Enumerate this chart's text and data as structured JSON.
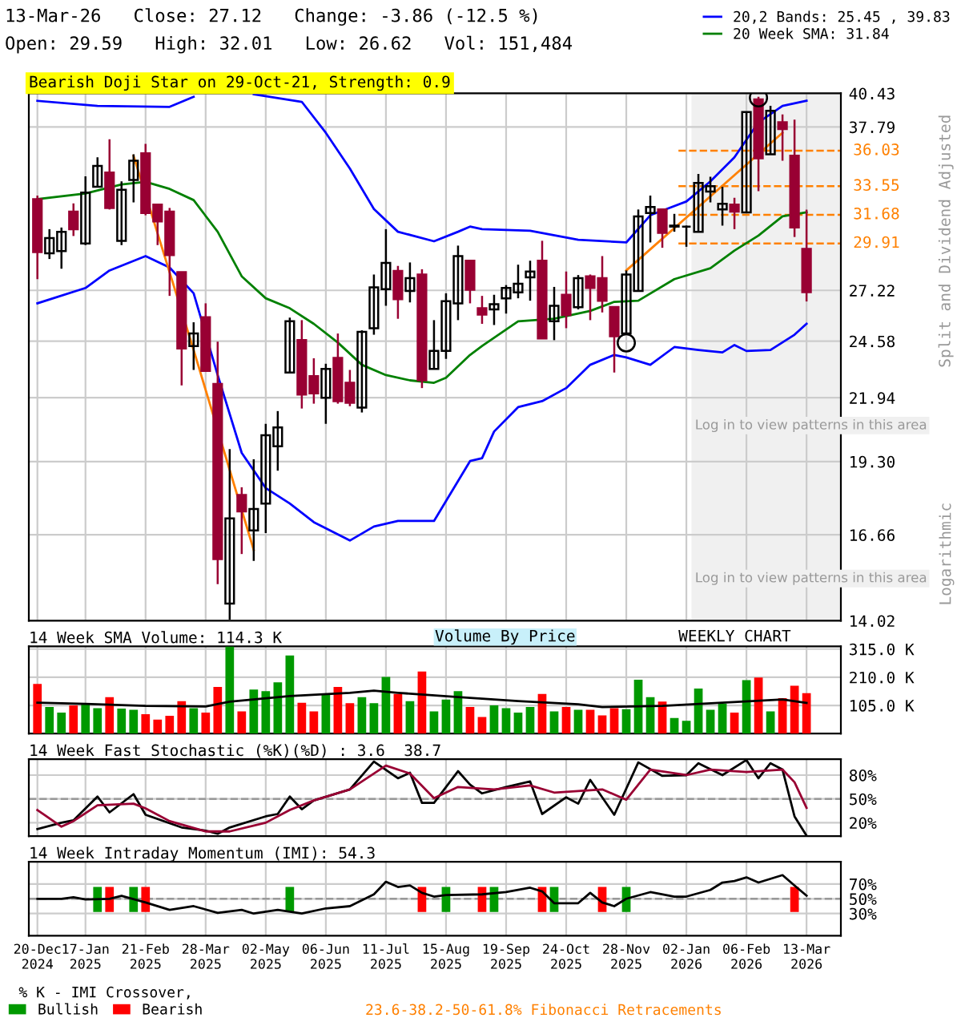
{
  "chart_data": [
    {
      "type": "candlestick",
      "title": "13-Mar-26   Close: 27.12   Change: -3.86 (-12.5 %)",
      "subtitle": "Open: 29.59   High: 32.01   Low: 26.62   Vol: 151,484",
      "ylabel": "Split and Dividend Adjusted",
      "colors": [
        "#990033",
        "#000000",
        "#000000",
        "#990033",
        "#000000",
        "#000000",
        "#990033",
        "#000000",
        "#000000",
        "#990033",
        "#990033",
        "#990033",
        "#990033",
        "#000000",
        "#990033",
        "#990033",
        "#000000",
        "#990033",
        "#000000",
        "#000000",
        "#000000",
        "#000000",
        "#990033",
        "#990033",
        "#000000",
        "#990033",
        "#990033",
        "#000000",
        "#000000",
        "#000000",
        "#990033",
        "#000000",
        "#990033",
        "#000000",
        "#000000",
        "#000000",
        "#990033",
        "#990033",
        "#000000",
        "#000000",
        "#000000",
        "#000000",
        "#990033",
        "#000000",
        "#990033",
        "#000000",
        "#990033",
        "#990033",
        "#990033",
        "#000000",
        "#000000",
        "#000000",
        "#990033",
        "#000000",
        "#000000",
        "#000000",
        "#000000",
        "#000000",
        "#990033",
        "#000000",
        "#990033",
        "#000000",
        "#990033",
        "#990033",
        "#990033"
      ],
      "x": [
        "2024-12-20",
        "2024-12-27",
        "2025-01-03",
        "2025-01-10",
        "2025-01-17",
        "2025-01-24",
        "2025-01-31",
        "2025-02-07",
        "2025-02-14",
        "2025-02-21",
        "2025-02-28",
        "2025-03-07",
        "2025-03-14",
        "2025-03-21",
        "2025-03-28",
        "2025-04-04",
        "2025-04-11",
        "2025-04-18",
        "2025-04-25",
        "2025-05-02",
        "2025-05-09",
        "2025-05-16",
        "2025-05-23",
        "2025-05-30",
        "2025-06-06",
        "2025-06-13",
        "2025-06-20",
        "2025-06-27",
        "2025-07-04",
        "2025-07-11",
        "2025-07-18",
        "2025-07-25",
        "2025-08-01",
        "2025-08-08",
        "2025-08-15",
        "2025-08-22",
        "2025-08-29",
        "2025-09-05",
        "2025-09-12",
        "2025-09-19",
        "2025-09-26",
        "2025-10-03",
        "2025-10-10",
        "2025-10-17",
        "2025-10-24",
        "2025-10-31",
        "2025-11-07",
        "2025-11-14",
        "2025-11-21",
        "2025-11-28",
        "2025-12-05",
        "2025-12-12",
        "2025-12-19",
        "2025-12-26",
        "2026-01-02",
        "2026-01-09",
        "2026-01-16",
        "2026-01-23",
        "2026-01-30",
        "2026-02-06",
        "2026-02-13",
        "2026-02-20",
        "2026-02-27",
        "2026-03-06",
        "2026-03-13"
      ],
      "ohlc": [
        [
          32.69,
          32.93,
          27.84,
          29.39
        ],
        [
          29.32,
          30.78,
          28.99,
          30.23
        ],
        [
          29.45,
          30.88,
          28.43,
          30.62
        ],
        [
          31.89,
          32.42,
          30.36,
          30.78
        ],
        [
          29.91,
          34.23,
          29.81,
          33.13
        ],
        [
          33.52,
          35.56,
          33.52,
          34.95
        ],
        [
          34.49,
          36.87,
          32.02,
          32.12
        ],
        [
          30.07,
          33.88,
          29.81,
          33.31
        ],
        [
          33.98,
          35.78,
          32.48,
          35.31
        ],
        [
          35.85,
          36.53,
          31.65,
          31.8
        ],
        [
          32.33,
          32.33,
          29.81,
          31.26
        ],
        [
          31.89,
          32.12,
          26.92,
          29.22
        ],
        [
          28.23,
          28.23,
          22.49,
          24.22
        ],
        [
          24.34,
          25.53,
          23.2,
          24.96
        ],
        [
          25.79,
          26.52,
          23.15,
          23.15
        ],
        [
          22.56,
          24.56,
          15.09,
          15.87
        ],
        [
          14.51,
          19.79,
          14.05,
          17.22
        ],
        [
          18.05,
          18.33,
          16.03,
          17.46
        ],
        [
          16.81,
          19.39,
          15.81,
          17.55
        ],
        [
          17.74,
          20.82,
          16.72,
          20.35
        ],
        [
          19.9,
          21.36,
          18.95,
          20.67
        ],
        [
          23.08,
          25.77,
          23.08,
          25.58
        ],
        [
          24.63,
          25.64,
          21.47,
          22.08
        ],
        [
          22.91,
          23.75,
          21.68,
          22.13
        ],
        [
          21.94,
          23.49,
          20.82,
          23.25
        ],
        [
          23.77,
          24.96,
          21.68,
          21.79
        ],
        [
          22.61,
          23.2,
          21.57,
          21.72
        ],
        [
          21.51,
          25.12,
          21.3,
          25.04
        ],
        [
          25.23,
          28.1,
          24.9,
          27.38
        ],
        [
          27.29,
          30.78,
          26.39,
          28.76
        ],
        [
          28.3,
          28.59,
          25.71,
          26.74
        ],
        [
          27.19,
          28.79,
          26.57,
          27.9
        ],
        [
          28.1,
          28.4,
          22.37,
          22.72
        ],
        [
          23.25,
          25.64,
          23.25,
          24.1
        ],
        [
          24.1,
          27.06,
          23.72,
          26.63
        ],
        [
          26.52,
          29.78,
          25.64,
          29.16
        ],
        [
          28.89,
          28.89,
          26.52,
          27.25
        ],
        [
          26.26,
          26.92,
          25.45,
          25.93
        ],
        [
          26.2,
          26.98,
          25.39,
          26.47
        ],
        [
          26.79,
          27.51,
          25.98,
          27.35
        ],
        [
          27.11,
          28.66,
          26.79,
          27.58
        ],
        [
          27.94,
          28.89,
          26.66,
          28.27
        ],
        [
          28.89,
          30.07,
          24.71,
          24.71
        ],
        [
          25.58,
          27.41,
          24.63,
          26.39
        ],
        [
          26.98,
          28.27,
          25.23,
          25.9
        ],
        [
          26.31,
          28.07,
          26.2,
          27.9
        ],
        [
          28.0,
          28.1,
          25.64,
          27.35
        ],
        [
          27.9,
          29.16,
          26.04,
          26.66
        ],
        [
          26.33,
          26.33,
          23.08,
          24.82
        ],
        [
          24.96,
          28.33,
          24.9,
          28.1
        ],
        [
          27.19,
          32.02,
          27.19,
          31.58
        ],
        [
          31.8,
          32.93,
          29.97,
          32.18
        ],
        [
          32.02,
          32.02,
          29.65,
          30.55
        ],
        [
          30.94,
          31.74,
          30.62,
          31.0
        ],
        [
          30.94,
          31.0,
          29.71,
          30.94
        ],
        [
          30.62,
          34.39,
          30.62,
          33.77
        ],
        [
          33.19,
          34.2,
          32.48,
          33.56
        ],
        [
          32.02,
          33.52,
          31.0,
          32.39
        ],
        [
          32.33,
          32.78,
          30.78,
          31.89
        ],
        [
          31.83,
          38.95,
          31.83,
          38.95
        ],
        [
          39.95,
          40.15,
          33.22,
          35.49
        ],
        [
          35.78,
          39.43,
          35.78,
          39.03
        ],
        [
          38.15,
          38.75,
          35.31,
          37.64
        ],
        [
          35.67,
          38.35,
          30.3,
          30.88
        ],
        [
          29.59,
          32.01,
          26.62,
          27.12
        ]
      ],
      "series": [
        {
          "type": "line",
          "name": "20,2 Bands: 25.45 , 39.83",
          "color": "#0000ff",
          "x": [
            "2024-12-20",
            "2025-01-24",
            "2025-03-07",
            "2025-03-21",
            "2025-04-04",
            "2025-04-25",
            "2025-05-23",
            "2025-06-06",
            "2025-06-20",
            "2025-07-04",
            "2025-07-18",
            "2025-08-08",
            "2025-08-22",
            "2025-08-29",
            "2025-09-05",
            "2025-10-03",
            "2025-10-31",
            "2025-11-28",
            "2025-12-12",
            "2026-01-02",
            "2026-01-16",
            "2026-01-30",
            "2026-02-13",
            "2026-02-27",
            "2026-03-13"
          ],
          "values": [
            39.83,
            39.43,
            39.35,
            40.15,
            null,
            40.35,
            39.75,
            37.35,
            34.77,
            32.05,
            30.62,
            30.04,
            30.62,
            30.94,
            30.78,
            30.68,
            30.13,
            29.97,
            31.65,
            32.54,
            33.88,
            35.56,
            38.15,
            39.43,
            39.83
          ]
        },
        {
          "type": "line",
          "color": "#0000ff",
          "x": [
            "2024-12-20",
            "2025-01-17",
            "2025-01-31",
            "2025-02-21",
            "2025-03-07",
            "2025-03-21",
            "2025-04-04",
            "2025-04-18",
            "2025-05-02",
            "2025-05-16",
            "2025-05-30",
            "2025-06-20",
            "2025-07-04",
            "2025-07-18",
            "2025-08-08",
            "2025-08-29",
            "2025-09-05",
            "2025-09-12",
            "2025-09-26",
            "2025-10-10",
            "2025-10-24",
            "2025-11-07",
            "2025-11-21",
            "2025-11-28",
            "2025-12-12",
            "2025-12-26",
            "2026-01-09",
            "2026-01-23",
            "2026-01-30",
            "2026-02-06",
            "2026-02-20",
            "2026-03-06",
            "2026-03-13"
          ],
          "values": [
            26.52,
            27.35,
            28.33,
            29.16,
            28.5,
            27.06,
            22.96,
            19.64,
            18.3,
            17.74,
            17.09,
            16.47,
            16.94,
            17.13,
            17.13,
            19.32,
            19.43,
            20.5,
            21.53,
            21.79,
            22.37,
            23.44,
            23.91,
            23.79,
            23.44,
            24.29,
            24.15,
            24.03,
            24.39,
            24.1,
            24.15,
            24.9,
            25.45
          ]
        },
        {
          "type": "line",
          "name": "20 Week SMA: 31.84",
          "color": "#008000",
          "x": [
            "2024-12-20",
            "2025-01-17",
            "2025-02-07",
            "2025-02-21",
            "2025-03-07",
            "2025-03-21",
            "2025-04-04",
            "2025-04-18",
            "2025-05-02",
            "2025-05-16",
            "2025-05-30",
            "2025-06-13",
            "2025-06-27",
            "2025-07-11",
            "2025-07-25",
            "2025-08-08",
            "2025-08-15",
            "2025-08-29",
            "2025-09-05",
            "2025-09-26",
            "2025-10-17",
            "2025-11-07",
            "2025-11-21",
            "2025-12-05",
            "2025-12-26",
            "2026-01-16",
            "2026-01-30",
            "2026-02-13",
            "2026-02-27",
            "2026-03-13"
          ],
          "values": [
            32.69,
            33.07,
            33.67,
            33.85,
            33.37,
            32.63,
            30.62,
            28.0,
            26.79,
            26.26,
            25.45,
            24.51,
            23.44,
            22.96,
            22.72,
            22.61,
            22.84,
            23.91,
            24.34,
            25.58,
            25.71,
            26.12,
            26.6,
            26.66,
            27.84,
            28.46,
            29.48,
            30.39,
            31.58,
            31.84
          ]
        },
        {
          "type": "line",
          "color": "#ff8000",
          "x": [
            "2025-02-14",
            "2025-03-21",
            "2025-04-25"
          ],
          "values": [
            35.67,
            24.15,
            16.16
          ]
        },
        {
          "type": "line",
          "color": "#ff8000",
          "x": [
            "2025-11-28",
            "2026-02-27"
          ],
          "values": [
            28.33,
            37.35
          ]
        },
        {
          "type": "scatter",
          "color": "#000000",
          "marker": "circle",
          "x": [
            "2025-11-28",
            "2026-02-13"
          ],
          "values": [
            24.5,
            40.07
          ]
        }
      ],
      "ref_lines": [
        {
          "axis": "y",
          "value": 36.03,
          "label": "36.03",
          "color": "#ff8000",
          "line_style": "dashed"
        },
        {
          "axis": "y",
          "value": 33.55,
          "label": "33.55",
          "color": "#ff8000",
          "line_style": "dashed"
        },
        {
          "axis": "y",
          "value": 31.68,
          "label": "31.68",
          "color": "#ff8000",
          "line_style": "dashed"
        },
        {
          "axis": "y",
          "value": 29.91,
          "label": "29.91",
          "color": "#ff8000",
          "line_style": "dashed"
        }
      ],
      "bands": [
        {
          "axis": "x",
          "from": "2026-01-05",
          "to": "2026-04-02",
          "label": "Log in to view patterns in this area",
          "color": "#f0f0f0"
        }
      ],
      "annotations": [
        "Bearish Doji Star on 29-Oct-21, Strength: 0.9",
        "Log in to view patterns in this area",
        "Logarithmic"
      ],
      "log": "y",
      "ylim": [
        14.02,
        40.43
      ],
      "yticks": [
        14.02,
        16.66,
        {
          "value": 19.3,
          "label": "19.30"
        },
        21.94,
        24.58,
        27.22,
        37.79,
        40.43
      ],
      "xlim": [
        "2024-12-15",
        "2026-04-02"
      ],
      "xticks": [
        {
          "value": "2024-12-20",
          "label": null
        },
        {
          "value": "2025-01-17",
          "label": null
        },
        {
          "value": "2025-02-21",
          "label": null
        },
        {
          "value": "2025-03-28",
          "label": null
        },
        {
          "value": "2025-05-02",
          "label": null
        },
        {
          "value": "2025-06-06",
          "label": null
        },
        {
          "value": "2025-07-11",
          "label": null
        },
        {
          "value": "2025-08-15",
          "label": null
        },
        {
          "value": "2025-09-19",
          "label": null
        },
        {
          "value": "2025-10-24",
          "label": null
        },
        {
          "value": "2025-11-28",
          "label": null
        },
        {
          "value": "2026-01-02",
          "label": null
        },
        {
          "value": "2026-02-06",
          "label": null
        },
        {
          "value": "2026-03-13",
          "label": null
        }
      ],
      "grid": true,
      "legend": "top right",
      "tick_labels": "y"
    },
    {
      "type": "bar",
      "title": "14 Week SMA Volume: 114.3 K",
      "x": [
        "2024-12-20",
        "2024-12-27",
        "2025-01-03",
        "2025-01-10",
        "2025-01-17",
        "2025-01-24",
        "2025-01-31",
        "2025-02-07",
        "2025-02-14",
        "2025-02-21",
        "2025-02-28",
        "2025-03-07",
        "2025-03-14",
        "2025-03-21",
        "2025-03-28",
        "2025-04-04",
        "2025-04-11",
        "2025-04-18",
        "2025-04-25",
        "2025-05-02",
        "2025-05-09",
        "2025-05-16",
        "2025-05-23",
        "2025-05-30",
        "2025-06-06",
        "2025-06-13",
        "2025-06-20",
        "2025-06-27",
        "2025-07-04",
        "2025-07-11",
        "2025-07-18",
        "2025-07-25",
        "2025-08-01",
        "2025-08-08",
        "2025-08-15",
        "2025-08-22",
        "2025-08-29",
        "2025-09-05",
        "2025-09-12",
        "2025-09-19",
        "2025-09-26",
        "2025-10-03",
        "2025-10-10",
        "2025-10-17",
        "2025-10-24",
        "2025-10-31",
        "2025-11-07",
        "2025-11-14",
        "2025-11-21",
        "2025-11-28",
        "2025-12-05",
        "2025-12-12",
        "2025-12-19",
        "2025-12-26",
        "2026-01-02",
        "2026-01-09",
        "2026-01-16",
        "2026-01-23",
        "2026-01-30",
        "2026-02-06",
        "2026-02-13",
        "2026-02-20",
        "2026-02-27",
        "2026-03-06",
        "2026-03-13"
      ],
      "series": [
        {
          "type": "bar",
          "values": [
            185,
            99,
            78,
            105,
            111,
            95,
            136,
            93,
            89,
            72,
            52,
            66,
            121,
            95,
            78,
            174,
            325,
            83,
            164,
            158,
            191,
            291,
            115,
            83,
            148,
            174,
            113,
            136,
            113,
            211,
            148,
            121,
            231,
            83,
            127,
            158,
            99,
            62,
            105,
            95,
            78,
            99,
            148,
            83,
            99,
            89,
            89,
            68,
            95,
            91,
            201,
            136,
            119,
            58,
            48,
            168,
            89,
            111,
            78,
            199,
            209,
            83,
            132,
            178,
            151
          ],
          "colors": [
            "#ff0000",
            "#009900",
            "#009900",
            "#ff0000",
            "#009900",
            "#009900",
            "#ff0000",
            "#009900",
            "#009900",
            "#ff0000",
            "#ff0000",
            "#ff0000",
            "#ff0000",
            "#009900",
            "#ff0000",
            "#ff0000",
            "#009900",
            "#ff0000",
            "#009900",
            "#009900",
            "#009900",
            "#009900",
            "#ff0000",
            "#ff0000",
            "#009900",
            "#ff0000",
            "#ff0000",
            "#009900",
            "#009900",
            "#009900",
            "#ff0000",
            "#009900",
            "#ff0000",
            "#009900",
            "#009900",
            "#009900",
            "#ff0000",
            "#ff0000",
            "#009900",
            "#009900",
            "#009900",
            "#009900",
            "#ff0000",
            "#009900",
            "#ff0000",
            "#009900",
            "#ff0000",
            "#ff0000",
            "#ff0000",
            "#009900",
            "#009900",
            "#009900",
            "#ff0000",
            "#009900",
            "#009900",
            "#009900",
            "#009900",
            "#009900",
            "#ff0000",
            "#009900",
            "#ff0000",
            "#009900",
            "#ff0000",
            "#ff0000",
            "#ff0000"
          ]
        },
        {
          "type": "line",
          "color": "#000000",
          "x": [
            "2024-12-20",
            "2025-01-17",
            "2025-02-21",
            "2025-03-28",
            "2025-04-11",
            "2025-05-16",
            "2025-06-20",
            "2025-07-04",
            "2025-07-18",
            "2025-08-22",
            "2025-09-26",
            "2025-10-31",
            "2025-11-14",
            "2025-12-19",
            "2026-01-23",
            "2026-02-27",
            "2026-03-13"
          ],
          "values": [
            115,
            111,
            103,
            101,
            119,
            140,
            152,
            160,
            152,
            136,
            121,
            109,
            99,
            103,
            115,
            127,
            114.3
          ]
        }
      ],
      "annotations": [
        "Volume By Price",
        "WEEKLY CHART"
      ],
      "ylim": [
        0,
        325
      ],
      "yticks": [
        {
          "value": 105,
          "label": "105.0 K"
        },
        {
          "value": 210,
          "label": "210.0 K"
        },
        {
          "value": 315,
          "label": "315.0 K"
        }
      ],
      "xlim": [
        "2024-12-15",
        "2026-04-02"
      ],
      "xticks": [
        {
          "value": "2024-12-20",
          "label": null
        },
        {
          "value": "2025-01-17",
          "label": null
        },
        {
          "value": "2025-02-21",
          "label": null
        },
        {
          "value": "2025-03-28",
          "label": null
        },
        {
          "value": "2025-05-02",
          "label": null
        },
        {
          "value": "2025-06-06",
          "label": null
        },
        {
          "value": "2025-07-11",
          "label": null
        },
        {
          "value": "2025-08-15",
          "label": null
        },
        {
          "value": "2025-09-19",
          "label": null
        },
        {
          "value": "2025-10-24",
          "label": null
        },
        {
          "value": "2025-11-28",
          "label": null
        },
        {
          "value": "2026-01-02",
          "label": null
        },
        {
          "value": "2026-02-06",
          "label": null
        },
        {
          "value": "2026-03-13",
          "label": null
        }
      ],
      "grid": true,
      "tick_labels": "y"
    },
    {
      "type": "line",
      "title": "14 Week Fast Stochastic (%K)(%D) : 3.6  38.7",
      "series": [
        {
          "color": "#000000",
          "x": [
            "2024-12-20",
            "2025-01-03",
            "2025-01-10",
            "2025-01-24",
            "2025-01-31",
            "2025-02-14",
            "2025-02-21",
            "2025-03-14",
            "2025-03-28",
            "2025-04-04",
            "2025-04-11",
            "2025-05-02",
            "2025-05-09",
            "2025-05-16",
            "2025-05-23",
            "2025-05-30",
            "2025-06-20",
            "2025-07-04",
            "2025-07-18",
            "2025-07-25",
            "2025-08-01",
            "2025-08-08",
            "2025-08-22",
            "2025-08-29",
            "2025-09-05",
            "2025-09-19",
            "2025-10-03",
            "2025-10-10",
            "2025-10-24",
            "2025-10-31",
            "2025-11-07",
            "2025-11-21",
            "2025-12-05",
            "2025-12-19",
            "2026-01-02",
            "2026-01-09",
            "2026-01-23",
            "2026-02-06",
            "2026-02-13",
            "2026-02-20",
            "2026-02-27",
            "2026-03-06",
            "2026-03-13"
          ],
          "values": [
            12,
            20,
            23,
            53,
            33,
            56,
            30,
            14,
            10,
            6,
            14,
            28,
            31,
            53,
            37,
            48,
            62,
            97,
            76,
            83,
            45,
            45,
            85,
            68,
            57,
            65,
            72,
            31,
            52,
            44,
            74,
            30,
            96,
            79,
            80,
            95,
            80,
            99,
            76,
            95,
            87,
            28,
            3.6
          ]
        },
        {
          "color": "#990033",
          "x": [
            "2024-12-20",
            "2025-01-03",
            "2025-01-10",
            "2025-01-24",
            "2025-02-14",
            "2025-02-21",
            "2025-03-07",
            "2025-03-28",
            "2025-04-11",
            "2025-05-02",
            "2025-05-16",
            "2025-05-30",
            "2025-06-20",
            "2025-07-11",
            "2025-07-25",
            "2025-08-08",
            "2025-08-22",
            "2025-09-12",
            "2025-10-03",
            "2025-10-17",
            "2025-10-31",
            "2025-11-14",
            "2025-11-28",
            "2025-12-12",
            "2026-01-02",
            "2026-01-16",
            "2026-02-06",
            "2026-02-13",
            "2026-02-27",
            "2026-03-06",
            "2026-03-13"
          ],
          "values": [
            36,
            15,
            22,
            42,
            44,
            38,
            22,
            9,
            9,
            20,
            36,
            48,
            62,
            92,
            82,
            51,
            65,
            62,
            67,
            58,
            60,
            62,
            49,
            87,
            80,
            87,
            84,
            85,
            87,
            71,
            38.7
          ]
        }
      ],
      "ref_lines": [
        {
          "axis": "y",
          "value": 50,
          "color": "#999999",
          "line_style": "dashed"
        }
      ],
      "ylim": [
        3,
        100
      ],
      "yticks": [
        {
          "value": 20,
          "label": "20%"
        },
        {
          "value": 50,
          "label": "50%"
        },
        {
          "value": 80,
          "label": "80%"
        }
      ],
      "xlim": [
        "2024-12-15",
        "2026-04-02"
      ],
      "xticks": [
        {
          "value": "2024-12-20",
          "label": null
        },
        {
          "value": "2025-01-17",
          "label": null
        },
        {
          "value": "2025-02-21",
          "label": null
        },
        {
          "value": "2025-03-28",
          "label": null
        },
        {
          "value": "2025-05-02",
          "label": null
        },
        {
          "value": "2025-06-06",
          "label": null
        },
        {
          "value": "2025-07-11",
          "label": null
        },
        {
          "value": "2025-08-15",
          "label": null
        },
        {
          "value": "2025-09-19",
          "label": null
        },
        {
          "value": "2025-10-24",
          "label": null
        },
        {
          "value": "2025-11-28",
          "label": null
        },
        {
          "value": "2026-01-02",
          "label": null
        },
        {
          "value": "2026-02-06",
          "label": null
        },
        {
          "value": "2026-03-13",
          "label": null
        }
      ],
      "grid": true,
      "tick_labels": "y"
    },
    {
      "type": "line",
      "title": "14 Week Intraday Momentum (IMI): 54.3",
      "legend_title": "% K - IMI Crossover,",
      "series": [
        {
          "type": "bar",
          "name": "Bullish",
          "color": "#009900",
          "x": [
            "2025-01-24",
            "2025-02-14",
            "2025-05-16",
            "2025-08-15",
            "2025-09-12",
            "2025-10-17",
            "2025-11-28"
          ],
          "base": [
            32,
            32,
            32,
            32,
            32,
            32,
            32
          ],
          "values": [
            34,
            34,
            34,
            34,
            34,
            34,
            34
          ]
        },
        {
          "type": "bar",
          "name": "Bearish",
          "color": "#ff0000",
          "x": [
            "2025-01-31",
            "2025-02-21",
            "2025-08-01",
            "2025-09-05",
            "2025-10-10",
            "2025-11-14",
            "2026-03-06"
          ],
          "base": [
            32,
            32,
            32,
            32,
            32,
            32,
            32
          ],
          "values": [
            34,
            34,
            34,
            34,
            34,
            34,
            34
          ]
        },
        {
          "type": "line",
          "color": "#000000",
          "x": [
            "2024-12-20",
            "2025-01-03",
            "2025-01-10",
            "2025-01-17",
            "2025-01-31",
            "2025-02-07",
            "2025-02-21",
            "2025-03-07",
            "2025-03-21",
            "2025-04-04",
            "2025-04-18",
            "2025-04-25",
            "2025-05-09",
            "2025-05-23",
            "2025-06-06",
            "2025-06-20",
            "2025-07-04",
            "2025-07-11",
            "2025-07-18",
            "2025-07-25",
            "2025-08-01",
            "2025-08-08",
            "2025-08-15",
            "2025-09-05",
            "2025-09-19",
            "2025-10-03",
            "2025-10-10",
            "2025-10-17",
            "2025-10-31",
            "2025-11-07",
            "2025-11-14",
            "2025-11-21",
            "2025-11-28",
            "2025-12-12",
            "2025-12-26",
            "2026-01-02",
            "2026-01-16",
            "2026-01-23",
            "2026-01-30",
            "2026-02-06",
            "2026-02-13",
            "2026-02-27",
            "2026-03-06",
            "2026-03-13"
          ],
          "values": [
            50,
            50,
            52,
            49,
            50,
            54,
            45,
            35,
            40,
            31,
            35,
            30,
            35,
            30,
            37,
            40,
            56,
            73,
            66,
            68,
            58,
            53,
            55,
            56,
            59,
            65,
            60,
            44,
            44,
            58,
            45,
            40,
            50,
            59,
            53,
            53,
            62,
            72,
            74,
            79,
            72,
            82,
            68,
            54.3
          ]
        }
      ],
      "ref_lines": [
        {
          "axis": "y",
          "value": 50,
          "color": "#999999",
          "line_style": "dashed"
        }
      ],
      "annotations": [
        "23.6-38.2-50-61.8% Fibonacci Retracements"
      ],
      "ylim": [
        0,
        100
      ],
      "yticks": [
        {
          "value": 30,
          "label": "30%"
        },
        {
          "value": 50,
          "label": "50%"
        },
        {
          "value": 70,
          "label": "70%"
        }
      ],
      "xlim": [
        "2024-12-15",
        "2026-04-02"
      ],
      "xticks": [
        {
          "value": "2024-12-20",
          "label": "20-Dec\n2024"
        },
        {
          "value": "2025-01-17",
          "label": "17-Jan\n2025"
        },
        {
          "value": "2025-02-21",
          "label": "21-Feb\n2025"
        },
        {
          "value": "2025-03-28",
          "label": "28-Mar\n2025"
        },
        {
          "value": "2025-05-02",
          "label": "02-May\n2025"
        },
        {
          "value": "2025-06-06",
          "label": "06-Jun\n2025"
        },
        {
          "value": "2025-07-11",
          "label": "11-Jul\n2025"
        },
        {
          "value": "2025-08-15",
          "label": "15-Aug\n2025"
        },
        {
          "value": "2025-09-19",
          "label": "19-Sep\n2025"
        },
        {
          "value": "2025-10-24",
          "label": "24-Oct\n2025"
        },
        {
          "value": "2025-11-28",
          "label": "28-Nov\n2025"
        },
        {
          "value": "2026-01-02",
          "label": "02-Jan\n2026"
        },
        {
          "value": "2026-02-06",
          "label": "06-Feb\n2026"
        },
        {
          "value": "2026-03-13",
          "label": "13-Mar\n2026"
        }
      ],
      "grid": true,
      "legend": "bottom"
    }
  ]
}
